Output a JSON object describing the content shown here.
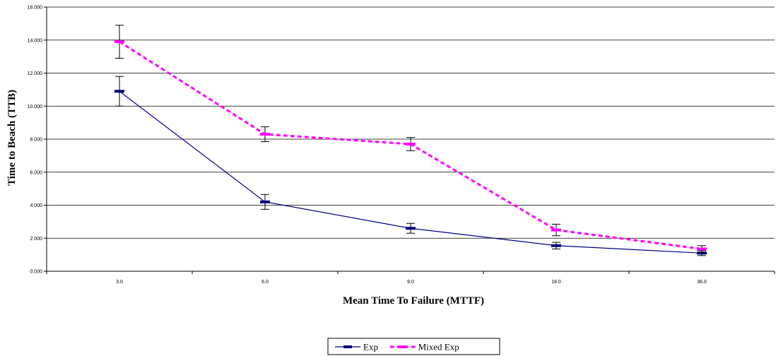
{
  "chart_data": {
    "type": "line",
    "title": "",
    "xlabel": "Mean Time To Failure (MTTF)",
    "ylabel": "Time to Beach (TTB)",
    "categories": [
      "3.0",
      "6.0",
      "9.0",
      "18.0",
      "36.0"
    ],
    "y_ticks": [
      "0.000",
      "2.000",
      "4.000",
      "6.000",
      "8.000",
      "10.000",
      "12.000",
      "14.000",
      "16.000"
    ],
    "ylim": [
      0,
      16
    ],
    "grid": true,
    "legend_position": "bottom",
    "series": [
      {
        "name": "Exp",
        "color": "#000080",
        "dashed": false,
        "values": [
          10.9,
          4.2,
          2.6,
          1.55,
          1.1
        ],
        "error": [
          0.9,
          0.45,
          0.3,
          0.2,
          0.15
        ]
      },
      {
        "name": "Mixed Exp",
        "color": "#ff00ff",
        "dashed": true,
        "values": [
          13.9,
          8.3,
          7.7,
          2.5,
          1.35
        ],
        "error": [
          1.0,
          0.45,
          0.4,
          0.35,
          0.2
        ]
      }
    ]
  }
}
